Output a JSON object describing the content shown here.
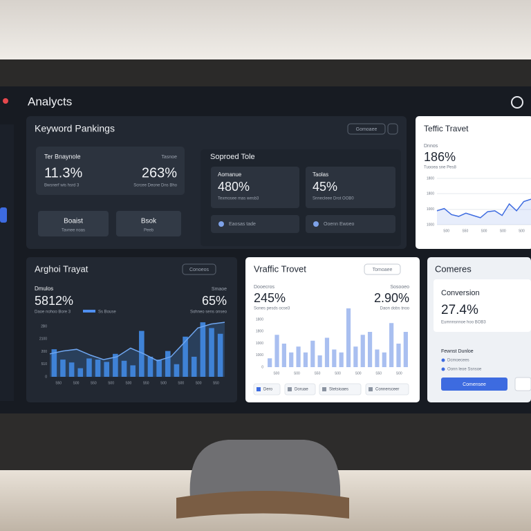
{
  "app_title": "Analycts",
  "keyword": {
    "title": "Keyword Pankings",
    "button": "Gomoaee",
    "stats": [
      {
        "label": "Ter Bnaynole",
        "value": "11.3%",
        "note": "Bwsnerf wis hsrd 3"
      },
      {
        "label": "Tasnoe",
        "value": "263%",
        "note": "Scrcee Deone Dns Bho"
      }
    ],
    "buttons": [
      {
        "label": "Boaist",
        "note": "Tavnee noas"
      },
      {
        "label": "Bsok",
        "note": "Peeb"
      }
    ]
  },
  "sopped": {
    "title": "Soproed Tole",
    "cards": [
      {
        "label": "Aomanue",
        "value": "480%",
        "note": "Texmosee mas wesb3"
      },
      {
        "label": "Taolas",
        "value": "45%",
        "note": "Snnecleee Drot OOB0"
      }
    ],
    "dropdowns": [
      "Eaosas tade",
      "Ooenn Ewoeo"
    ]
  },
  "teffic": {
    "title": "Teffic Travet",
    "label": "Dnnos",
    "value": "186%",
    "note": "Tuooea sne Pes8",
    "yticks": [
      "1800",
      "1800",
      "1000",
      "1000"
    ],
    "xticks": [
      "S00",
      "S50",
      "S00",
      "S00",
      "S00"
    ],
    "ylim": [
      0,
      100
    ],
    "line": [
      30,
      35,
      22,
      18,
      25,
      20,
      15,
      28,
      30,
      20,
      45,
      30,
      50,
      55
    ]
  },
  "arghoi": {
    "title": "Arghoi Trayat",
    "button": "Conoeos",
    "left": {
      "label": "Dmulos",
      "value": "5812%",
      "note": "Daoe nohoo Bore 3"
    },
    "right": {
      "label": "Smaoe",
      "value": "65%",
      "note": "Sohneo sens onseo"
    },
    "legend": "Ss Bouse",
    "yticks": [
      "2B0",
      "2100",
      "200",
      "510",
      "0"
    ],
    "xticks": [
      "S50",
      "S00",
      "S50",
      "S00",
      "S00",
      "S50",
      "S00",
      "S00",
      "S00",
      "S50"
    ],
    "ylim": [
      0,
      100
    ],
    "bars": [
      48,
      30,
      25,
      15,
      32,
      30,
      26,
      40,
      28,
      20,
      80,
      35,
      30,
      45,
      22,
      70,
      35,
      95,
      85,
      75
    ],
    "line": [
      40,
      45,
      48,
      38,
      30,
      35,
      50,
      40,
      28,
      35,
      60,
      85,
      92,
      95
    ]
  },
  "vraffic": {
    "title": "Vraffic Trovet",
    "button": "Tomoaee",
    "left": {
      "label": "Dooecros",
      "value": "245%",
      "note": "Sones pesds ocse3"
    },
    "right": {
      "label": "Sosooeo",
      "value": "2.90%",
      "note": "Daon dobs tnoo"
    },
    "yticks": [
      "1800",
      "1800",
      "1000",
      "1000",
      "0"
    ],
    "xticks": [
      "S00",
      "S00",
      "S50",
      "S00",
      "S00",
      "S50",
      "S00"
    ],
    "ylim": [
      0,
      100
    ],
    "bars": [
      15,
      55,
      40,
      25,
      35,
      25,
      45,
      20,
      50,
      30,
      25,
      100,
      35,
      55,
      60,
      30,
      25,
      75,
      40,
      60
    ],
    "legend": [
      "Dero",
      "Doruae",
      "Stetsioaes",
      "Connersceer"
    ]
  },
  "comeres": {
    "title": "Comeres",
    "label": "Conversion",
    "value": "27.4%",
    "note": "Eumnnsnnoe hoo BOB3",
    "list_title": "Fewnst Dunloe",
    "items": [
      "Dcmoecees",
      "Oonn leoe Ssnsoe"
    ],
    "button": "Comensee"
  }
}
